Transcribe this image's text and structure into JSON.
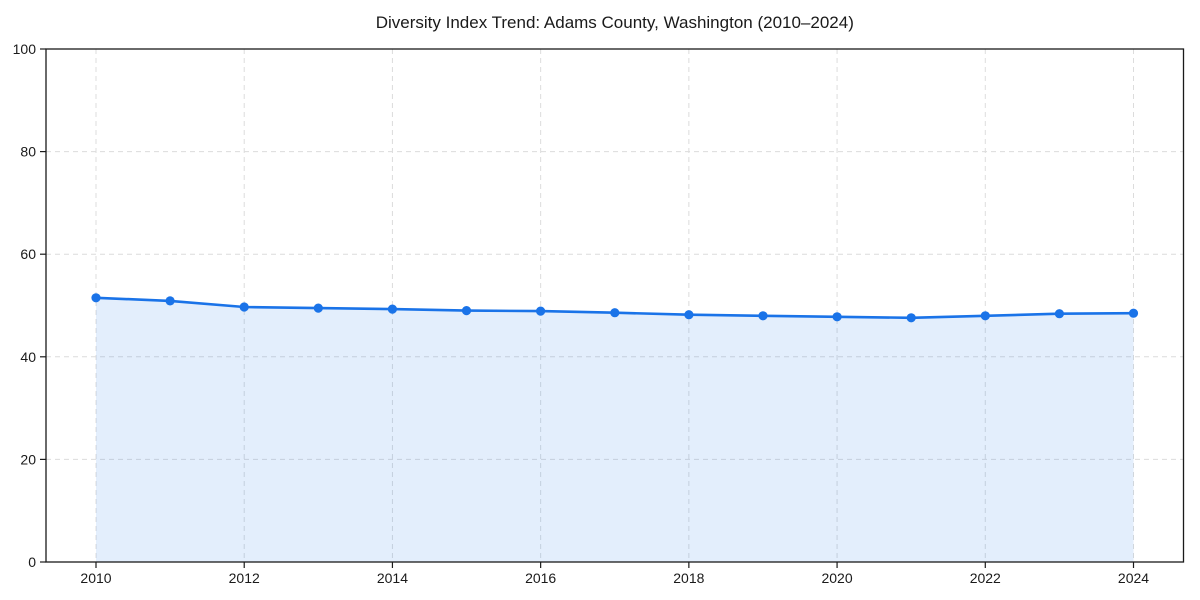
{
  "chart_data": {
    "type": "area",
    "title": "Diversity Index Trend: Adams County, Washington (2010–2024)",
    "x": [
      2010,
      2011,
      2012,
      2013,
      2014,
      2015,
      2016,
      2017,
      2018,
      2019,
      2020,
      2021,
      2022,
      2023,
      2024
    ],
    "series": [
      {
        "name": "Diversity Index",
        "values": [
          51.5,
          50.9,
          49.7,
          49.5,
          49.3,
          49.0,
          48.9,
          48.6,
          48.2,
          48.0,
          47.8,
          47.6,
          48.0,
          48.4,
          48.5
        ]
      }
    ],
    "xlabel": "",
    "ylabel": "",
    "ylim": [
      0,
      100
    ],
    "y_ticks": [
      0,
      20,
      40,
      60,
      80,
      100
    ],
    "x_ticks": [
      2010,
      2012,
      2014,
      2016,
      2018,
      2020,
      2022,
      2024
    ],
    "grid": "dashed-both-axes",
    "legend_position": "none",
    "colors": {
      "line": "#1a73e8",
      "marker": "#1a73e8",
      "fill": "rgba(26,115,232,0.12)",
      "grid": "#dcdcdc",
      "axis": "#1a1a1a",
      "text": "#1a1a1a",
      "background": "#ffffff"
    }
  }
}
